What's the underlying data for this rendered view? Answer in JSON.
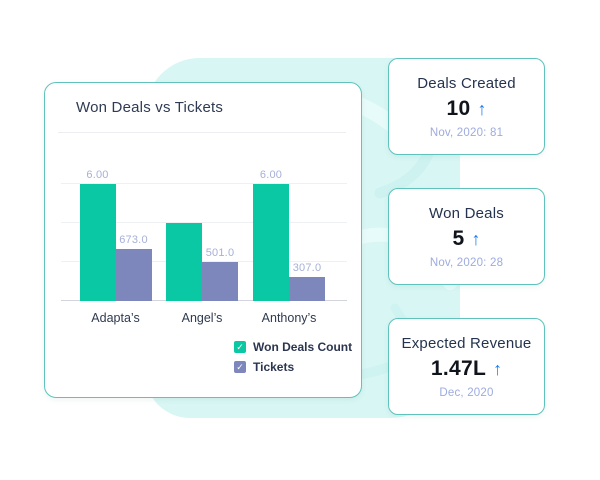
{
  "colors": {
    "accent_mint_bg": "#d8f6f4",
    "card_border_teal": "#5fc2bc",
    "series_won_deals": "#0bc8a4",
    "series_tickets": "#7e87bb",
    "trend_arrow_blue": "#1b7df1",
    "subtitle_periwinkle": "#9dabdf",
    "data_label": "#a6b0d8"
  },
  "icons": {
    "trend_up": "↑",
    "checkmark": "✓"
  },
  "chart_card": {
    "title": "Won Deals vs Tickets",
    "legend": [
      {
        "label": "Won Deals Count",
        "color": "#0bc8a4",
        "checked": true
      },
      {
        "label": "Tickets",
        "color": "#7e87bb",
        "checked": true
      }
    ]
  },
  "chart_data": {
    "type": "bar",
    "title": "Won Deals vs Tickets",
    "categories": [
      "Adapta’s",
      "Angel’s",
      "Anthony’s"
    ],
    "series": [
      {
        "name": "Won Deals Count",
        "axis": "primary",
        "color": "#0bc8a4",
        "values": [
          6,
          4,
          6
        ],
        "data_labels": [
          "6.00",
          "",
          "6.00"
        ]
      },
      {
        "name": "Tickets",
        "axis": "secondary",
        "color": "#7e87bb",
        "values": [
          673,
          501,
          307
        ],
        "data_labels": [
          "673.0",
          "501.0",
          "307.0"
        ]
      }
    ],
    "primary_axis": {
      "ylim": [
        0,
        7.1
      ],
      "gridline_values": [
        2,
        4,
        6
      ],
      "tick_labels_visible": false
    },
    "secondary_axis": {
      "ylim": [
        0,
        1775
      ],
      "tick_labels_visible": false
    },
    "grid": "horizontal",
    "legend_position": "bottom-right"
  },
  "kpi_cards": [
    {
      "title": "Deals Created",
      "value": "10",
      "trend": "up",
      "subtitle": "Nov, 2020: 81"
    },
    {
      "title": "Won Deals",
      "value": "5",
      "trend": "up",
      "subtitle": "Nov, 2020: 28"
    },
    {
      "title": "Expected Revenue",
      "value": "1.47L",
      "trend": "up",
      "subtitle": "Dec, 2020"
    }
  ]
}
